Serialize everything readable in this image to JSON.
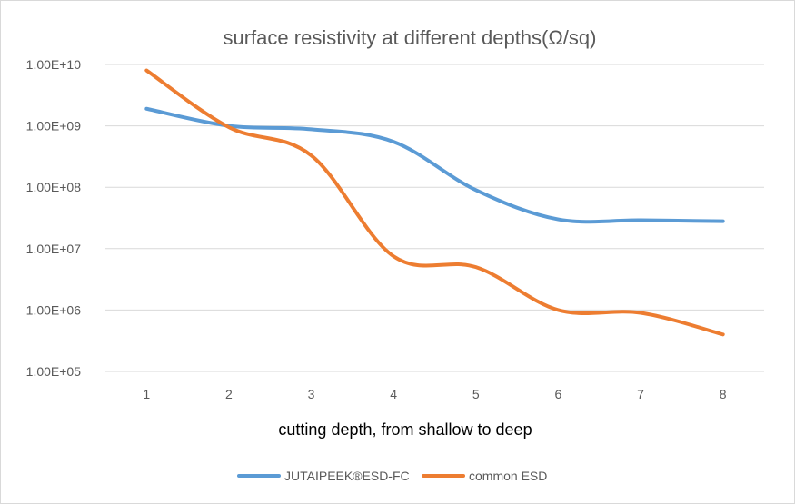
{
  "chart_data": {
    "type": "line",
    "title": "surface resistivity at different depths(Ω/sq)",
    "xlabel": "cutting depth, from shallow to deep",
    "ylabel": "",
    "y_scale": "log",
    "ylim": [
      100000,
      10000000000
    ],
    "categories": [
      "1",
      "2",
      "3",
      "4",
      "5",
      "6",
      "7",
      "8"
    ],
    "y_tick_values": [
      100000,
      1000000,
      10000000,
      100000000,
      1000000000,
      10000000000
    ],
    "y_tick_labels": [
      "1.00E+05",
      "1.00E+06",
      "1.00E+07",
      "1.00E+08",
      "1.00E+09",
      "1.00E+10"
    ],
    "grid": true,
    "legend_position": "bottom",
    "series": [
      {
        "name": "JUTAIPEEK®ESD-FC",
        "color": "#5b9bd5",
        "values": [
          1900000000,
          1000000000,
          880000000,
          550000000,
          90000000,
          30000000,
          29000000,
          28000000
        ]
      },
      {
        "name": "common ESD",
        "color": "#ed7d31",
        "values": [
          8000000000,
          950000000,
          330000000,
          7500000,
          5000000,
          1000000,
          900000,
          400000
        ]
      }
    ]
  }
}
